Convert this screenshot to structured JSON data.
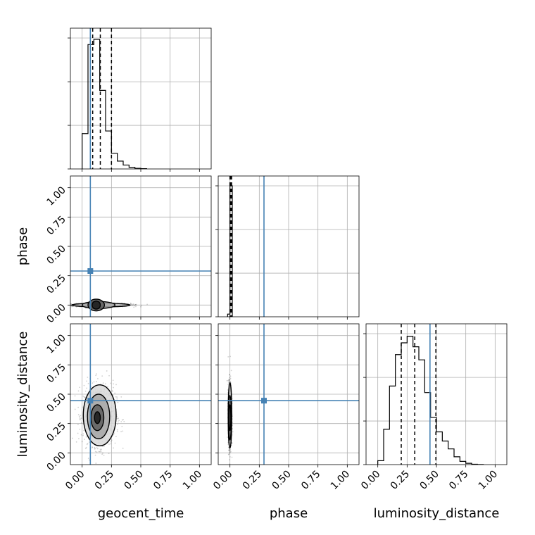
{
  "chart_data": {
    "type": "corner",
    "parameters": [
      {
        "key": "geocent_time",
        "label": "geocent_time",
        "truth": 0.07,
        "quantiles": [
          0.09,
          0.155,
          0.25
        ]
      },
      {
        "key": "phase",
        "label": "phase",
        "truth": 0.29,
        "quantiles": [
          0.0,
          0.007,
          0.014
        ]
      },
      {
        "key": "luminosity_distance",
        "label": "luminosity_distance",
        "truth": 0.445,
        "quantiles": [
          0.2,
          0.315,
          0.495
        ]
      }
    ],
    "range": [
      -0.1,
      1.1
    ],
    "ticks": [
      0.0,
      0.25,
      0.5,
      0.75,
      1.0
    ],
    "tick_labels": [
      "0.00",
      "0.25",
      "0.50",
      "0.75",
      "1.00"
    ],
    "grid": true,
    "truth_color": "#4682b4",
    "histograms": {
      "geocent_time": {
        "edges": [
          0.0,
          0.05,
          0.1,
          0.15,
          0.2,
          0.25,
          0.3,
          0.35,
          0.4,
          0.45,
          0.5,
          0.55
        ],
        "counts": [
          0.27,
          0.95,
          0.99,
          0.6,
          0.29,
          0.12,
          0.06,
          0.03,
          0.012,
          0.005,
          0.002
        ]
      },
      "phase": {
        "edges": [
          -0.02,
          0.0,
          0.02
        ],
        "counts": [
          0.02,
          1.0
        ]
      },
      "luminosity_distance": {
        "edges": [
          0.0,
          0.05,
          0.1,
          0.15,
          0.2,
          0.25,
          0.3,
          0.35,
          0.4,
          0.45,
          0.5,
          0.55,
          0.6,
          0.65,
          0.7,
          0.75,
          0.8,
          0.85,
          0.9
        ],
        "counts": [
          0.03,
          0.27,
          0.6,
          0.84,
          0.93,
          0.98,
          0.9,
          0.8,
          0.55,
          0.36,
          0.25,
          0.18,
          0.12,
          0.06,
          0.025,
          0.01,
          0.003,
          0.001
        ]
      }
    },
    "contours": {
      "phase_vs_geocent_time": [
        {
          "cx": 0.16,
          "cy": 0.0,
          "rx": 0.25,
          "ry": 0.015
        },
        {
          "cx": 0.14,
          "cy": 0.0,
          "rx": 0.14,
          "ry": 0.03
        },
        {
          "cx": 0.12,
          "cy": 0.0,
          "rx": 0.07,
          "ry": 0.05
        },
        {
          "cx": 0.12,
          "cy": 0.0,
          "rx": 0.035,
          "ry": 0.035
        }
      ],
      "luminosity_distance_vs_geocent_time": [
        {
          "cx": 0.15,
          "cy": 0.32,
          "rx": 0.14,
          "ry": 0.26
        },
        {
          "cx": 0.14,
          "cy": 0.31,
          "rx": 0.095,
          "ry": 0.19
        },
        {
          "cx": 0.13,
          "cy": 0.3,
          "rx": 0.055,
          "ry": 0.11
        },
        {
          "cx": 0.13,
          "cy": 0.3,
          "rx": 0.025,
          "ry": 0.05
        }
      ],
      "luminosity_distance_vs_phase": [
        {
          "cx": 0.0,
          "cy": 0.32,
          "rx": 0.015,
          "ry": 0.28
        },
        {
          "cx": 0.0,
          "cy": 0.3,
          "rx": 0.011,
          "ry": 0.19
        },
        {
          "cx": 0.0,
          "cy": 0.3,
          "rx": 0.007,
          "ry": 0.11
        }
      ]
    }
  }
}
